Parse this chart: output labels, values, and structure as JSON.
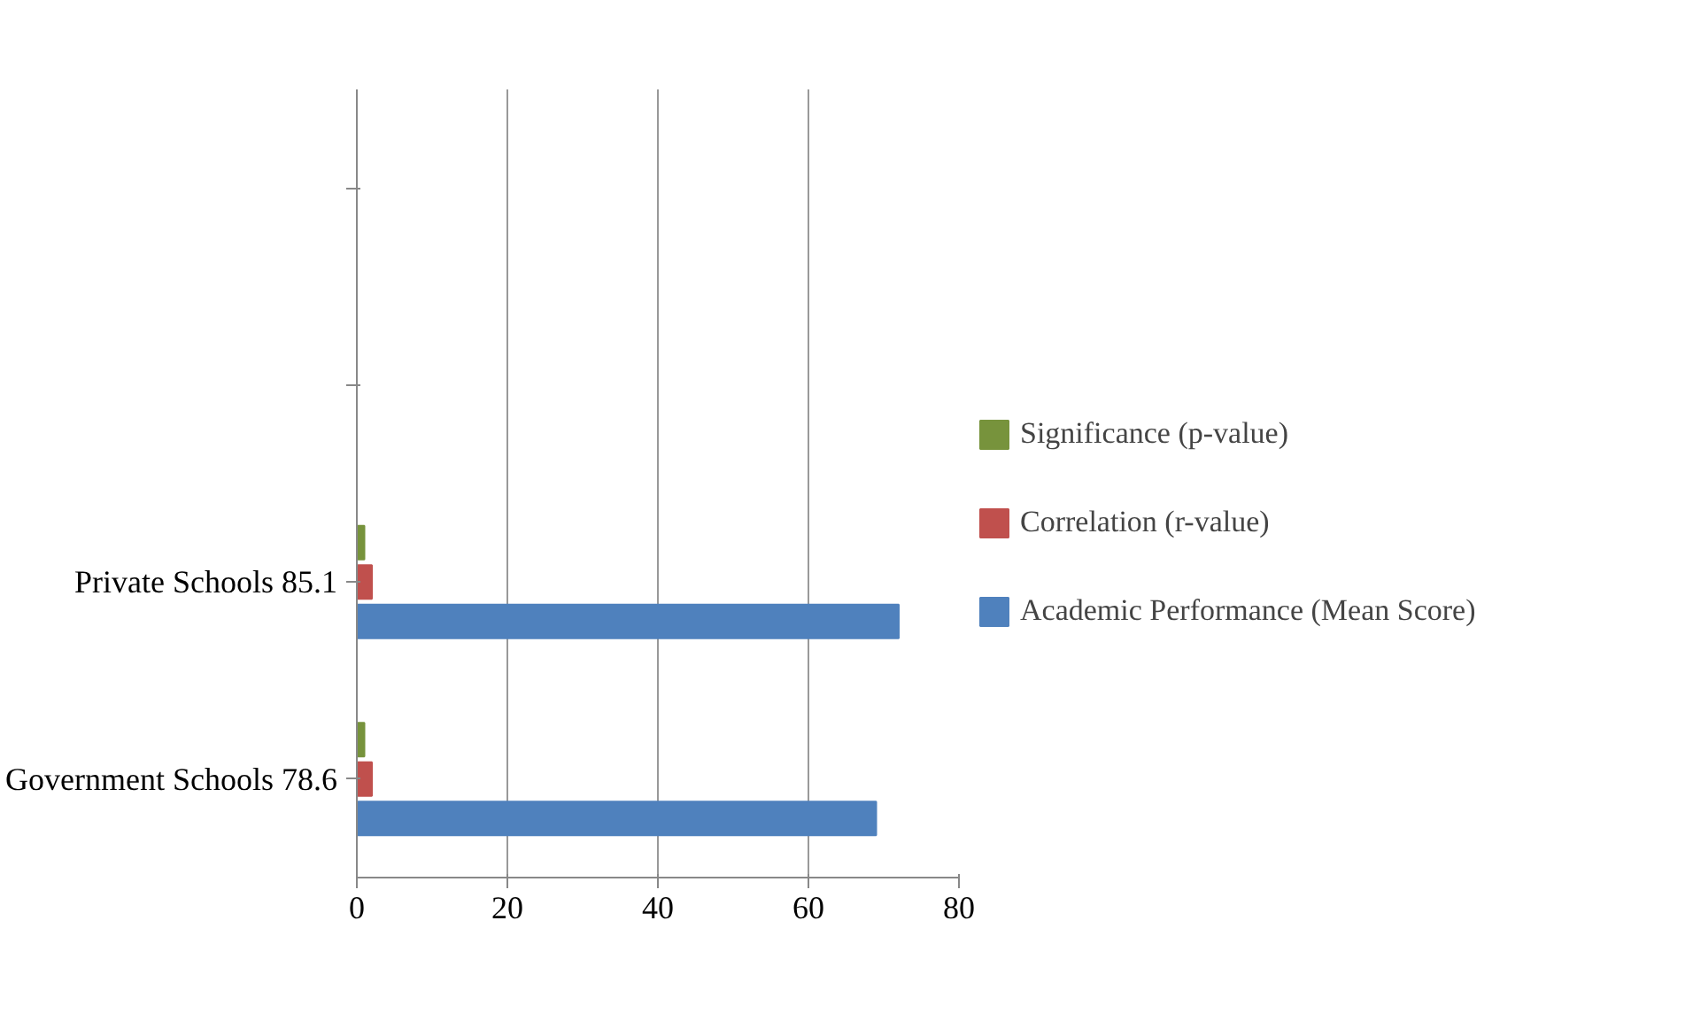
{
  "chart_data": {
    "type": "bar",
    "orientation": "horizontal",
    "categories": [
      null,
      null,
      "Private Schools 85.1",
      "Government Schools 78.6"
    ],
    "series": [
      {
        "name": "Academic Performance (Mean Score)",
        "color": "#4f81bd",
        "values": [
          null,
          null,
          72,
          69
        ]
      },
      {
        "name": "Correlation (r-value)",
        "color": "#c0504d",
        "values": [
          null,
          null,
          2,
          2
        ]
      },
      {
        "name": "Significance (p-value)",
        "color": "#77933c",
        "values": [
          null,
          null,
          1,
          1
        ]
      }
    ],
    "xlim": [
      0,
      80
    ],
    "xticks": [
      0,
      20,
      40,
      60,
      80
    ],
    "grid": "x",
    "legend": "right"
  }
}
